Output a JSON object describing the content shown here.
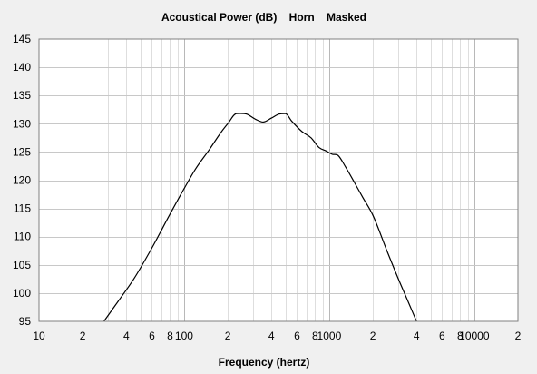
{
  "chart_data": {
    "type": "line",
    "title": "Acoustical Power (dB)    Horn    Masked",
    "xlabel": "Frequency (hertz)",
    "ylabel": "",
    "x_scale": "log",
    "xlim": [
      10,
      20000
    ],
    "ylim": [
      95,
      145
    ],
    "grid": true,
    "x_tick_labels": [
      {
        "value": 10,
        "label": "10"
      },
      {
        "value": 20,
        "label": "2"
      },
      {
        "value": 40,
        "label": "4"
      },
      {
        "value": 60,
        "label": "6"
      },
      {
        "value": 80,
        "label": "8"
      },
      {
        "value": 100,
        "label": "100"
      },
      {
        "value": 200,
        "label": "2"
      },
      {
        "value": 400,
        "label": "4"
      },
      {
        "value": 600,
        "label": "6"
      },
      {
        "value": 800,
        "label": "8"
      },
      {
        "value": 1000,
        "label": "1000"
      },
      {
        "value": 2000,
        "label": "2"
      },
      {
        "value": 4000,
        "label": "4"
      },
      {
        "value": 6000,
        "label": "6"
      },
      {
        "value": 8000,
        "label": "8"
      },
      {
        "value": 10000,
        "label": "10000"
      },
      {
        "value": 20000,
        "label": "2"
      }
    ],
    "y_ticks": [
      95,
      100,
      105,
      110,
      115,
      120,
      125,
      130,
      135,
      140,
      145
    ],
    "series": [
      {
        "color": "#000000",
        "x": [
          28,
          35,
          45,
          60,
          80,
          100,
          120,
          150,
          180,
          200,
          230,
          270,
          310,
          350,
          400,
          450,
          500,
          550,
          650,
          750,
          850,
          950,
          1050,
          1150,
          1300,
          1500,
          1700,
          2000,
          2500,
          3000,
          3500,
          4000
        ],
        "y": [
          95,
          98.5,
          102.5,
          108,
          114,
          118.5,
          122,
          125.5,
          128.5,
          130,
          131.8,
          131.7,
          130.8,
          130.3,
          131,
          131.7,
          131.8,
          130.5,
          128.6,
          127.5,
          125.8,
          125.2,
          124.6,
          124.4,
          122.3,
          119.5,
          117,
          113.8,
          107.5,
          102.5,
          98.5,
          95
        ]
      }
    ]
  }
}
